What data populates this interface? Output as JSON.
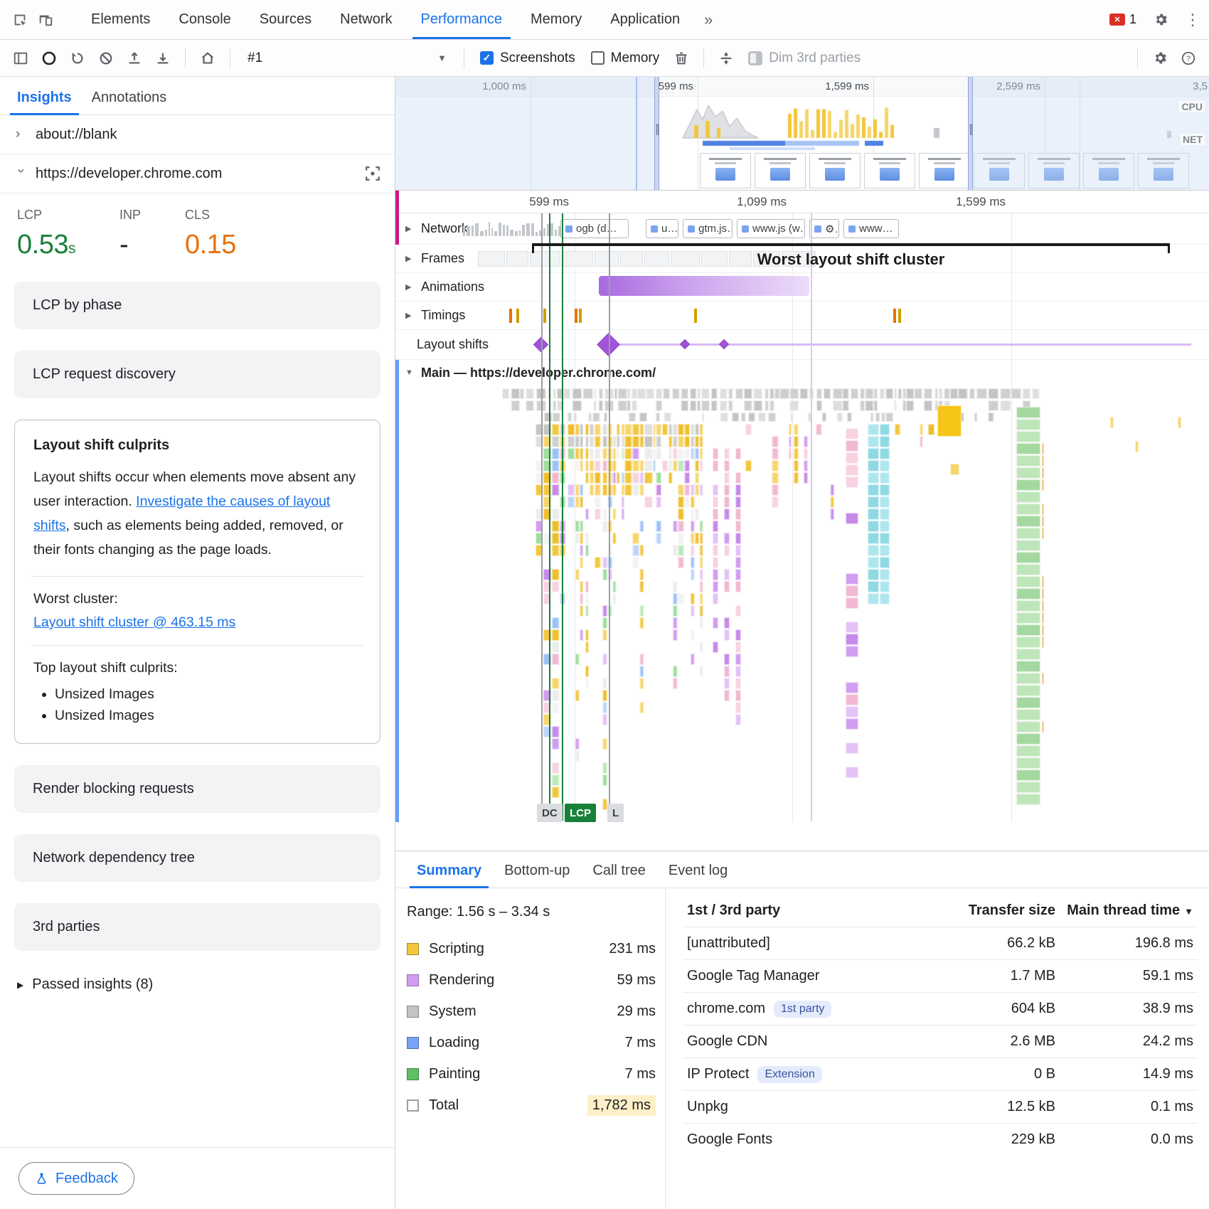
{
  "accent": "#1a73e8",
  "chrome_tabs": {
    "items": [
      "Elements",
      "Console",
      "Sources",
      "Network",
      "Performance",
      "Memory",
      "Application"
    ],
    "active": "Performance",
    "more": "»",
    "error_count": "1"
  },
  "toolbar": {
    "profile": "#1",
    "screenshots": "Screenshots",
    "memory": "Memory",
    "dim": "Dim 3rd parties"
  },
  "sidebar": {
    "tabs": [
      "Insights",
      "Annotations"
    ],
    "origins": [
      "about://blank",
      "https://developer.chrome.com"
    ],
    "metrics": [
      {
        "name": "LCP",
        "value": "0.53",
        "unit": "s",
        "color": "green"
      },
      {
        "name": "INP",
        "value": "-",
        "unit": "",
        "color": "plain"
      },
      {
        "name": "CLS",
        "value": "0.15",
        "unit": "",
        "color": "orange"
      }
    ],
    "cards_top": [
      "LCP by phase",
      "LCP request discovery"
    ],
    "culprits": {
      "title": "Layout shift culprits",
      "body_1": "Layout shifts occur when elements move absent any user interaction. ",
      "link_1": "Investigate the causes of layout shifts",
      "body_2": ", such as elements being added, removed, or their fonts changing as the page loads.",
      "worst_label": "Worst cluster:",
      "worst_link": "Layout shift cluster @ 463.15 ms",
      "top_label": "Top layout shift culprits:",
      "bullets": [
        "Unsized Images",
        "Unsized Images"
      ]
    },
    "cards_bottom": [
      "Render blocking requests",
      "Network dependency tree",
      "3rd parties"
    ],
    "passed": "Passed insights (8)",
    "feedback": "Feedback"
  },
  "minimap": {
    "labels": [
      "1,000 ms",
      "599 ms",
      "1,599 ms",
      "2,599 ms",
      "3,5"
    ],
    "cpu": "CPU",
    "net": "NET"
  },
  "timeline": {
    "ruler": [
      "599 ms",
      "1,099 ms",
      "1,599 ms"
    ],
    "tracks": [
      "Network",
      "Frames",
      "Animations",
      "Timings",
      "Layout shifts"
    ],
    "frames_suffix": "ms",
    "network_chips": [
      "ogb (d…",
      "u…",
      "gtm.js…",
      "www.js (w…",
      "⚙…",
      "www…"
    ],
    "cluster_label": "Worst layout shift cluster",
    "main_label": "Main — https://developer.chrome.com/",
    "markers": [
      "DC",
      "LCP",
      "L"
    ]
  },
  "bottom": {
    "tabs": [
      "Summary",
      "Bottom-up",
      "Call tree",
      "Event log"
    ],
    "active_tab": "Summary",
    "range": "Range: 1.56 s – 3.34 s",
    "legend": [
      {
        "name": "Scripting",
        "value": "231 ms",
        "color": "#f3c73c"
      },
      {
        "name": "Rendering",
        "value": "59 ms",
        "color": "#d19df0"
      },
      {
        "name": "System",
        "value": "29 ms",
        "color": "#c3c3c3"
      },
      {
        "name": "Loading",
        "value": "7 ms",
        "color": "#7aa3f5"
      },
      {
        "name": "Painting",
        "value": "7 ms",
        "color": "#5fbe66"
      }
    ],
    "total": {
      "name": "Total",
      "value": "1,782 ms"
    },
    "table": {
      "headers": [
        "1st / 3rd party",
        "Transfer size",
        "Main thread time"
      ],
      "rows": [
        {
          "name": "[unattributed]",
          "badge": "",
          "size": "66.2 kB",
          "time": "196.8 ms"
        },
        {
          "name": "Google Tag Manager",
          "badge": "",
          "size": "1.7 MB",
          "time": "59.1 ms"
        },
        {
          "name": "chrome.com",
          "badge": "1st party",
          "size": "604 kB",
          "time": "38.9 ms"
        },
        {
          "name": "Google CDN",
          "badge": "",
          "size": "2.6 MB",
          "time": "24.2 ms"
        },
        {
          "name": "IP Protect",
          "badge": "Extension",
          "size": "0 B",
          "time": "14.9 ms"
        },
        {
          "name": "Unpkg",
          "badge": "",
          "size": "12.5 kB",
          "time": "0.1 ms"
        },
        {
          "name": "Google Fonts",
          "badge": "",
          "size": "229 kB",
          "time": "0.0 ms"
        }
      ]
    }
  },
  "palette": {
    "yellows": [
      "#f3c73c",
      "#f7d56a",
      "#efbe2a"
    ],
    "oranges": [
      "#f0a73c"
    ],
    "purples": [
      "#d19df0",
      "#e3c2f7",
      "#c78ae8"
    ],
    "pinks": [
      "#f2b8d2",
      "#f7d2e2"
    ],
    "greens": [
      "#9ede9c",
      "#bce8b8"
    ],
    "teals": [
      "#8fd9e3",
      "#aee6ee"
    ],
    "grays": [
      "#cfcfcf",
      "#dedede",
      "#c4c4c4"
    ],
    "blues": [
      "#9ec1f7",
      "#bcd4f9"
    ],
    "whites": [
      "#f3f3f3",
      "#ececec"
    ]
  }
}
